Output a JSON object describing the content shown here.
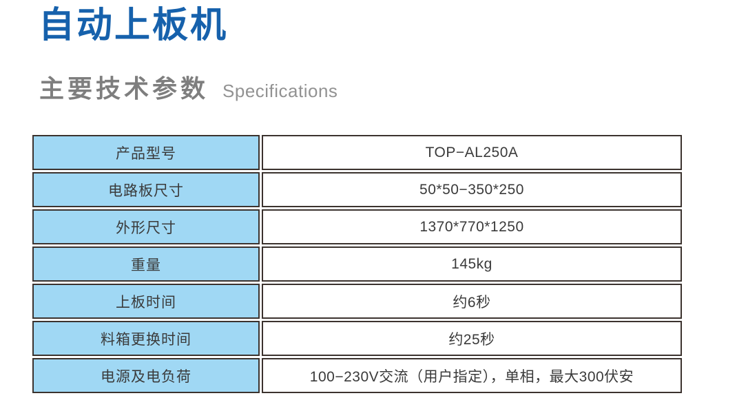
{
  "colors": {
    "title_blue": "#1661ac",
    "subtitle_gray": "#7e7e7e",
    "subtitle_light_gray": "#929292",
    "label_cell_blue": "#a0d8f4",
    "border_dark": "#3b322e",
    "table_text": "#3a3a3a",
    "background": "#ffffff"
  },
  "header": {
    "title": "自动上板机",
    "subtitle_zh": "主要技术参数",
    "subtitle_en": "Specifications"
  },
  "table": {
    "rows": [
      {
        "label": "产品型号",
        "value": "TOP−AL250A"
      },
      {
        "label": "电路板尺寸",
        "value": "50*50−350*250"
      },
      {
        "label": "外形尺寸",
        "value": "1370*770*1250"
      },
      {
        "label": "重量",
        "value": "145kg"
      },
      {
        "label": "上板时间",
        "value": "约6秒"
      },
      {
        "label": "料箱更换时间",
        "value": "约25秒"
      },
      {
        "label": "电源及电负荷",
        "value": "100−230V交流（用户指定），单相，最大300伏安"
      }
    ]
  }
}
